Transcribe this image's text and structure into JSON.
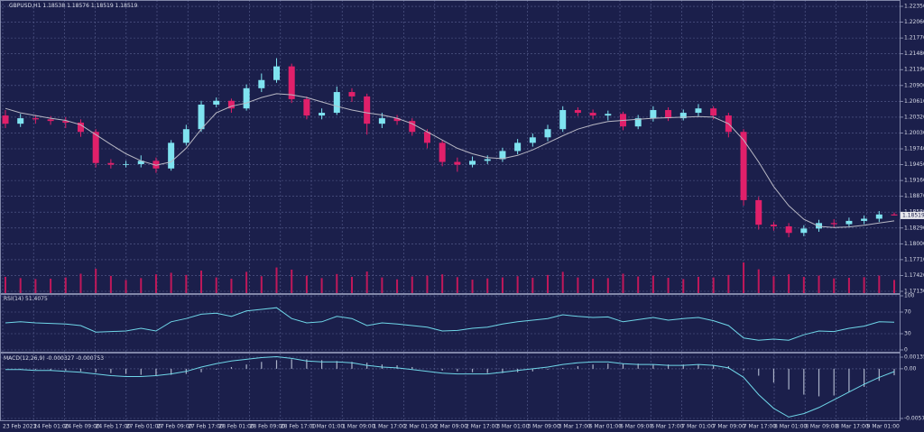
{
  "chart_data": [
    {
      "type": "candlestick",
      "symbol": "GBPUSD,H1",
      "open": [
        1.2035,
        1.202,
        1.203,
        1.2028,
        1.2025,
        1.2022,
        1.2005,
        1.1948,
        1.1945,
        1.1946,
        1.1952,
        1.1938,
        1.1985,
        1.201,
        1.2055,
        1.2062,
        1.2048,
        1.2085,
        1.21,
        1.2125,
        1.2065,
        1.2035,
        1.204,
        1.2078,
        1.207,
        1.202,
        1.203,
        1.2025,
        1.2005,
        1.1985,
        1.195,
        1.1945,
        1.1952,
        1.1955,
        1.197,
        1.1985,
        1.1995,
        1.201,
        1.2045,
        1.204,
        1.2035,
        1.2038,
        1.2015,
        1.203,
        1.2045,
        1.203,
        1.204,
        1.2048,
        1.2035,
        1.2005,
        1.188,
        1.1835,
        1.1832,
        1.182,
        1.1828,
        1.1838,
        1.1836,
        1.1842,
        1.1846,
        1.18538
      ],
      "high": [
        1.2045,
        1.2038,
        1.2036,
        1.2034,
        1.2032,
        1.2028,
        1.201,
        1.1955,
        1.1952,
        1.1962,
        1.1958,
        1.199,
        1.2018,
        1.2062,
        1.2068,
        1.2066,
        1.2092,
        1.2112,
        1.214,
        1.213,
        1.207,
        1.2048,
        1.2088,
        1.2085,
        1.2075,
        1.204,
        1.2036,
        1.203,
        1.201,
        1.199,
        1.1958,
        1.196,
        1.1962,
        1.1976,
        1.1992,
        1.2002,
        1.2018,
        1.2052,
        1.205,
        1.2046,
        1.2044,
        1.2042,
        1.2036,
        1.2052,
        1.205,
        1.2046,
        1.2056,
        1.2052,
        1.204,
        1.201,
        1.1886,
        1.184,
        1.1838,
        1.1834,
        1.1844,
        1.1845,
        1.1848,
        1.1852,
        1.186,
        1.18576
      ],
      "low": [
        1.2012,
        1.2014,
        1.202,
        1.2018,
        1.2012,
        1.1996,
        1.194,
        1.1938,
        1.194,
        1.194,
        1.193,
        1.1934,
        1.198,
        1.2005,
        1.205,
        1.204,
        1.2044,
        1.2078,
        1.2095,
        1.2058,
        1.2028,
        1.2028,
        1.2036,
        1.206,
        1.2,
        1.2012,
        1.2018,
        1.1998,
        1.1975,
        1.1942,
        1.1932,
        1.194,
        1.1946,
        1.195,
        1.1964,
        1.1978,
        1.1988,
        1.2005,
        1.2034,
        1.2028,
        1.2026,
        1.2008,
        1.201,
        1.2024,
        1.2025,
        1.2026,
        1.2034,
        1.2028,
        1.1995,
        1.187,
        1.1826,
        1.1824,
        1.1812,
        1.1814,
        1.1822,
        1.183,
        1.1832,
        1.1836,
        1.184,
        1.18519
      ],
      "close": [
        1.202,
        1.203,
        1.2028,
        1.2025,
        1.2022,
        1.2005,
        1.1948,
        1.1945,
        1.1946,
        1.1952,
        1.1938,
        1.1985,
        1.201,
        1.2055,
        1.2062,
        1.2048,
        1.2085,
        1.21,
        1.2125,
        1.2065,
        1.2035,
        1.204,
        1.2078,
        1.207,
        1.202,
        1.203,
        1.2025,
        1.2005,
        1.1985,
        1.195,
        1.1945,
        1.1952,
        1.1955,
        1.197,
        1.1985,
        1.1995,
        1.201,
        1.2045,
        1.204,
        1.2035,
        1.2038,
        1.2015,
        1.203,
        1.2045,
        1.203,
        1.204,
        1.2048,
        1.2035,
        1.2005,
        1.188,
        1.1835,
        1.1832,
        1.182,
        1.1828,
        1.1838,
        1.1836,
        1.1842,
        1.1846,
        1.18538,
        1.18519
      ],
      "ma": [
        1.2048,
        1.204,
        1.2035,
        1.203,
        1.2026,
        1.2018,
        1.2,
        1.1982,
        1.1965,
        1.1952,
        1.1944,
        1.195,
        1.1975,
        1.201,
        1.204,
        1.2052,
        1.2058,
        1.2068,
        1.2075,
        1.2073,
        1.2068,
        1.206,
        1.2052,
        1.2045,
        1.204,
        1.2036,
        1.203,
        1.202,
        1.2005,
        1.199,
        1.1975,
        1.1965,
        1.1958,
        1.1956,
        1.1962,
        1.1972,
        1.1985,
        1.1998,
        1.201,
        1.2018,
        1.2024,
        1.2026,
        1.2028,
        1.203,
        1.2031,
        1.2032,
        1.2033,
        1.2032,
        1.202,
        1.199,
        1.195,
        1.1905,
        1.187,
        1.1845,
        1.1832,
        1.183,
        1.1831,
        1.1834,
        1.1838,
        1.1842
      ],
      "volume": [
        5200,
        4800,
        4500,
        4600,
        5000,
        6200,
        7800,
        5500,
        4200,
        4800,
        6000,
        6500,
        5800,
        7200,
        5000,
        4600,
        6800,
        5400,
        8200,
        7500,
        5600,
        4800,
        6100,
        5200,
        6900,
        5000,
        4400,
        5300,
        5600,
        6000,
        5100,
        4300,
        4700,
        5000,
        5400,
        4900,
        5800,
        6800,
        5000,
        4600,
        4800,
        6200,
        5300,
        5600,
        4900,
        4500,
        5200,
        5000,
        5800,
        9800,
        7600,
        5400,
        6000,
        5200,
        5600,
        4700,
        4900,
        5100,
        5600,
        4200
      ],
      "ylim": [
        1.17097,
        1.22466
      ],
      "yticks": [
        {
          "value": 1.2235,
          "label": "1.22350"
        },
        {
          "value": 1.2206,
          "label": "1.22060"
        },
        {
          "value": 1.2177,
          "label": "1.21770"
        },
        {
          "value": 1.2148,
          "label": "1.21480"
        },
        {
          "value": 1.2119,
          "label": "1.21190"
        },
        {
          "value": 1.209,
          "label": "1.20900"
        },
        {
          "value": 1.2061,
          "label": "1.20610"
        },
        {
          "value": 1.2032,
          "label": "1.20320"
        },
        {
          "value": 1.2003,
          "label": "1.20030"
        },
        {
          "value": 1.1974,
          "label": "1.19740"
        },
        {
          "value": 1.1945,
          "label": "1.19450"
        },
        {
          "value": 1.1916,
          "label": "1.19160"
        },
        {
          "value": 1.1887,
          "label": "1.18870"
        },
        {
          "value": 1.1858,
          "label": "1.18580"
        },
        {
          "value": 1.1829,
          "label": "1.18290"
        },
        {
          "value": 1.18,
          "label": "1.18000"
        },
        {
          "value": 1.1771,
          "label": "1.17710"
        },
        {
          "value": 1.1742,
          "label": "1.17420"
        },
        {
          "value": 1.1713,
          "label": "1.17130"
        }
      ],
      "xtick_labels": [
        "23 Feb 2023",
        "24 Feb 01:00",
        "24 Feb 09:00",
        "24 Feb 17:00",
        "27 Feb 01:00",
        "27 Feb 09:00",
        "27 Feb 17:00",
        "28 Feb 01:00",
        "28 Feb 09:00",
        "28 Feb 17:00",
        "1 Mar 01:00",
        "1 Mar 09:00",
        "1 Mar 17:00",
        "2 Mar 01:00",
        "2 Mar 09:00",
        "2 Mar 17:00",
        "3 Mar 01:00",
        "3 Mar 09:00",
        "3 Mar 17:00",
        "6 Mar 01:00",
        "6 Mar 09:00",
        "6 Mar 17:00",
        "7 Mar 01:00",
        "7 Mar 09:00",
        "7 Mar 17:00",
        "8 Mar 01:00",
        "8 Mar 09:00",
        "8 Mar 17:00",
        "9 Mar 01:00"
      ],
      "up_color": "#7fe3f0",
      "down_color": "#e0206a",
      "ma_color": "#b8b8c4",
      "volume_color": "#c0185a",
      "grid": true
    },
    {
      "type": "line",
      "title": "RSI(14)",
      "values": [
        50,
        52,
        50,
        49,
        48,
        45,
        33,
        34,
        35,
        40,
        35,
        52,
        58,
        66,
        68,
        62,
        72,
        75,
        78,
        58,
        50,
        52,
        62,
        58,
        45,
        50,
        48,
        45,
        42,
        35,
        36,
        40,
        42,
        48,
        52,
        55,
        58,
        65,
        62,
        60,
        61,
        52,
        56,
        60,
        55,
        58,
        60,
        54,
        45,
        22,
        18,
        20,
        18,
        28,
        35,
        34,
        40,
        44,
        52,
        51.4075
      ],
      "ylim": [
        0,
        100
      ],
      "yticks": [
        100,
        70,
        30,
        0
      ],
      "color": "#6fd6e8",
      "grid": true
    },
    {
      "type": "macd",
      "title": "MACD(12,26,9)",
      "values": [
        -0.0001,
        -0.0001,
        -0.0002,
        -0.0002,
        -0.0003,
        -0.0004,
        -0.0006,
        -0.0008,
        -0.0009,
        -0.0009,
        -0.0008,
        -0.0006,
        -0.0003,
        0.0002,
        0.0006,
        0.0009,
        0.0011,
        0.0013,
        0.0014,
        0.0012,
        0.0009,
        0.0008,
        0.0008,
        0.0007,
        0.0004,
        0.0002,
        0.0001,
        -0.0001,
        -0.0003,
        -0.0005,
        -0.0006,
        -0.0006,
        -0.0006,
        -0.0004,
        -0.0002,
        0,
        0.0002,
        0.0005,
        0.0007,
        0.0008,
        0.0008,
        0.0006,
        0.0005,
        0.0005,
        0.0004,
        0.0004,
        0.0005,
        0.0004,
        0.0001,
        -0.001,
        -0.003,
        -0.0046,
        -0.0056,
        -0.0052,
        -0.0045,
        -0.0036,
        -0.0027,
        -0.0018,
        -0.001,
        -0.000327
      ],
      "signal": [
        0,
        -0.0001,
        -0.0001,
        -0.0002,
        -0.0002,
        -0.0003,
        -0.0004,
        -0.0005,
        -0.0006,
        -0.0007,
        -0.0008,
        -0.0007,
        -0.0006,
        -0.0004,
        -0.0001,
        0.0002,
        0.0005,
        0.0008,
        0.001,
        0.0011,
        0.0011,
        0.001,
        0.0009,
        0.0008,
        0.0007,
        0.0005,
        0.0004,
        0.0002,
        0,
        -0.0002,
        -0.0003,
        -0.0004,
        -0.0005,
        -0.0005,
        -0.0004,
        -0.0003,
        -0.0001,
        0.0001,
        0.0003,
        0.0005,
        0.0006,
        0.0006,
        0.0006,
        0.0005,
        0.0005,
        0.0005,
        0.0005,
        0.0004,
        0.0003,
        -0.0002,
        -0.0008,
        -0.0016,
        -0.0024,
        -0.003,
        -0.0032,
        -0.0031,
        -0.0027,
        -0.0021,
        -0.0014,
        -0.000753
      ],
      "ylim": [
        -0.00577,
        0.00135
      ],
      "yticks": [
        0.00135,
        {
          "value": 0,
          "label": "0.00"
        },
        -0.00577
      ],
      "color": "#6fd6e8",
      "histogram_color": "#aab2c8",
      "grid": true
    }
  ]
}
